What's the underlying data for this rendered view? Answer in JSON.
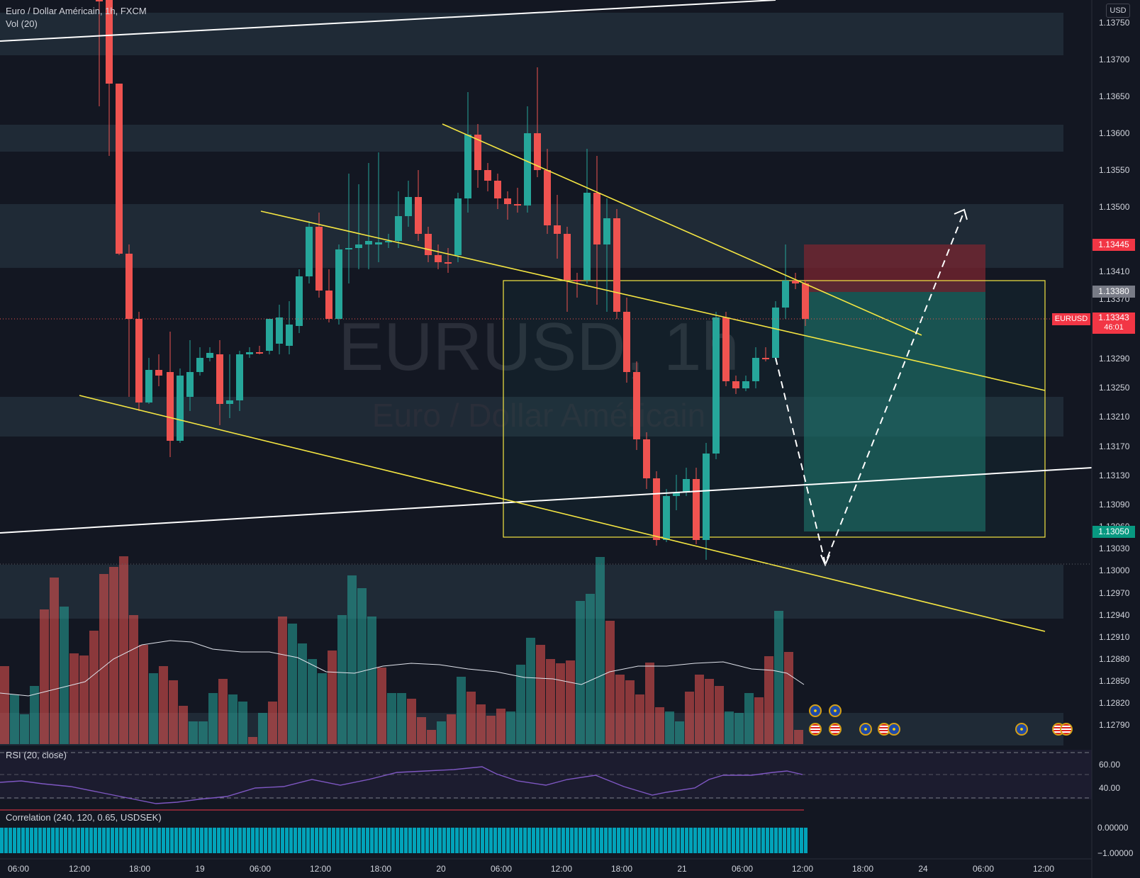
{
  "header": {
    "symbol_full": "Euro / Dollar Américain",
    "interval": "1h",
    "exchange": "FXCM",
    "title_line": "Euro / Dollar Américain, 1h, FXCM",
    "volume_legend": "Vol (20)"
  },
  "watermark": {
    "ticker_line": "EURUSD, 1h",
    "name_line": "Euro / Dollar Américain"
  },
  "currency_button": "USD",
  "price_axis": {
    "ticks": [
      "1.13750",
      "1.13700",
      "1.13650",
      "1.13600",
      "1.13550",
      "1.13500",
      "1.13450",
      "1.13410",
      "1.13370",
      "1.13290",
      "1.13250",
      "1.13210",
      "1.13170",
      "1.13130",
      "1.13090",
      "1.13060",
      "1.13030",
      "1.13000",
      "1.12970",
      "1.12940",
      "1.12910",
      "1.12880",
      "1.12850",
      "1.12820",
      "1.12790"
    ],
    "labels": {
      "stop": "1.13445",
      "entry": "1.13380",
      "ticker": "EURUSD",
      "current": "1.13343",
      "countdown": "46:01",
      "target": "1.13050"
    }
  },
  "rsi": {
    "legend": "RSI (20, close)",
    "ticks": [
      "60.00",
      "40.00"
    ]
  },
  "correlation": {
    "legend": "Correlation (240, 120, 0.65, USDSEK)",
    "ticks": [
      "0.00000",
      "−1.00000"
    ]
  },
  "time_axis": {
    "labels": [
      "06:00",
      "12:00",
      "18:00",
      "19",
      "06:00",
      "12:00",
      "18:00",
      "20",
      "06:00",
      "12:00",
      "18:00",
      "21",
      "06:00",
      "12:00",
      "18:00",
      "24",
      "06:00",
      "12:00"
    ]
  },
  "colors": {
    "background": "#131722",
    "bull": "#26a69a",
    "bear": "#ef5350",
    "trendline": "#f5e642",
    "support_line": "#ffffff",
    "stop_label": "#f23645",
    "target_label": "#089981",
    "entry_label": "#787b86"
  },
  "event_markers": {
    "icons": [
      "eu-flag-icon",
      "us-flag-icon"
    ]
  }
}
